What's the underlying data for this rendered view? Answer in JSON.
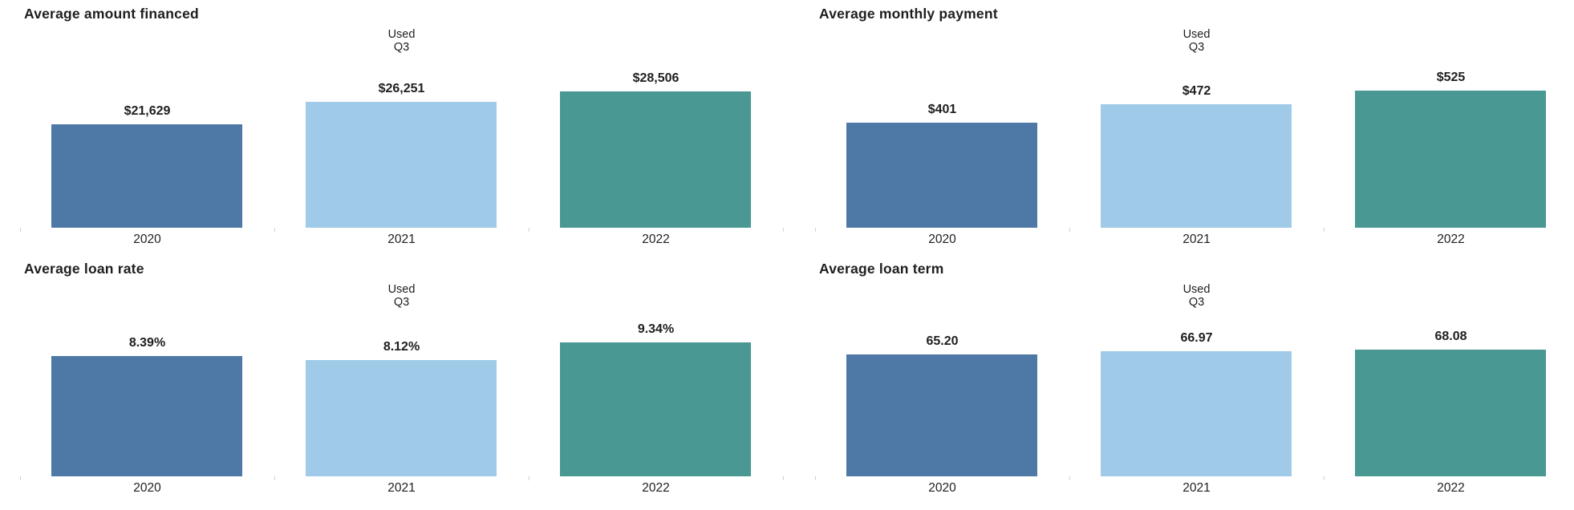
{
  "background": "#ffffff",
  "text_color": "#1e1e1e",
  "chart_data": [
    {
      "type": "bar",
      "title": "Average amount financed",
      "categories": [
        "2020",
        "2021",
        "2022"
      ],
      "values": [
        21629,
        26251,
        28506
      ],
      "value_labels": [
        "$21,629",
        "$26,251",
        "$28,506"
      ],
      "series_colors": [
        "#4e79a7",
        "#a0cbe8",
        "#499894"
      ],
      "annotation": {
        "lines": [
          "Used",
          "Q3"
        ],
        "above_category": "2021"
      },
      "xlabel": "",
      "ylabel": "",
      "ylim": [
        0,
        30000
      ],
      "grid": false,
      "legend": "none"
    },
    {
      "type": "bar",
      "title": "Average monthly payment",
      "categories": [
        "2020",
        "2021",
        "2022"
      ],
      "values": [
        401,
        472,
        525
      ],
      "value_labels": [
        "$401",
        "$472",
        "$525"
      ],
      "series_colors": [
        "#4e79a7",
        "#a0cbe8",
        "#499894"
      ],
      "annotation": {
        "lines": [
          "Used",
          "Q3"
        ],
        "above_category": "2021"
      },
      "xlabel": "",
      "ylabel": "",
      "ylim": [
        0,
        550
      ],
      "grid": false,
      "legend": "none"
    },
    {
      "type": "bar",
      "title": "Average loan rate",
      "categories": [
        "2020",
        "2021",
        "2022"
      ],
      "values": [
        8.39,
        8.12,
        9.34
      ],
      "value_labels": [
        "8.39%",
        "8.12%",
        "9.34%"
      ],
      "series_colors": [
        "#4e79a7",
        "#a0cbe8",
        "#499894"
      ],
      "annotation": {
        "lines": [
          "Used",
          "Q3"
        ],
        "above_category": "2021"
      },
      "xlabel": "",
      "ylabel": "",
      "ylim": [
        0,
        10
      ],
      "grid": false,
      "legend": "none"
    },
    {
      "type": "bar",
      "title": "Average loan term",
      "categories": [
        "2020",
        "2021",
        "2022"
      ],
      "values": [
        65.2,
        66.97,
        68.08
      ],
      "value_labels": [
        "65.20",
        "66.97",
        "68.08"
      ],
      "series_colors": [
        "#4e79a7",
        "#a0cbe8",
        "#499894"
      ],
      "annotation": {
        "lines": [
          "Used",
          "Q3"
        ],
        "above_category": "2021"
      },
      "xlabel": "",
      "ylabel": "",
      "ylim": [
        0,
        77
      ],
      "grid": false,
      "legend": "none"
    }
  ]
}
